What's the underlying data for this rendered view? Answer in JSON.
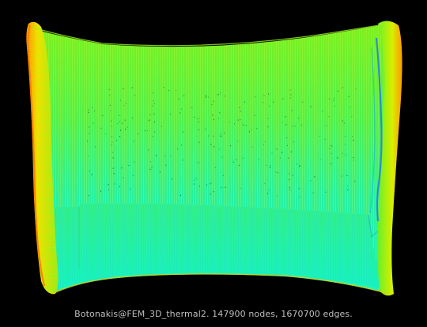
{
  "caption": "Botonakis@FEM_3D_thermal2. 147900 nodes, 1670700 edges.",
  "colors": {
    "background": "#000000",
    "caption_text": "#bfbfbf",
    "body_cyan": "#1cf2b0",
    "body_green": "#6ef21a",
    "body_mid": "#3cf06a",
    "rim_yellow": "#e6f000",
    "rim_orange": "#ff8a00",
    "seam_blue": "#1f7fe0"
  }
}
